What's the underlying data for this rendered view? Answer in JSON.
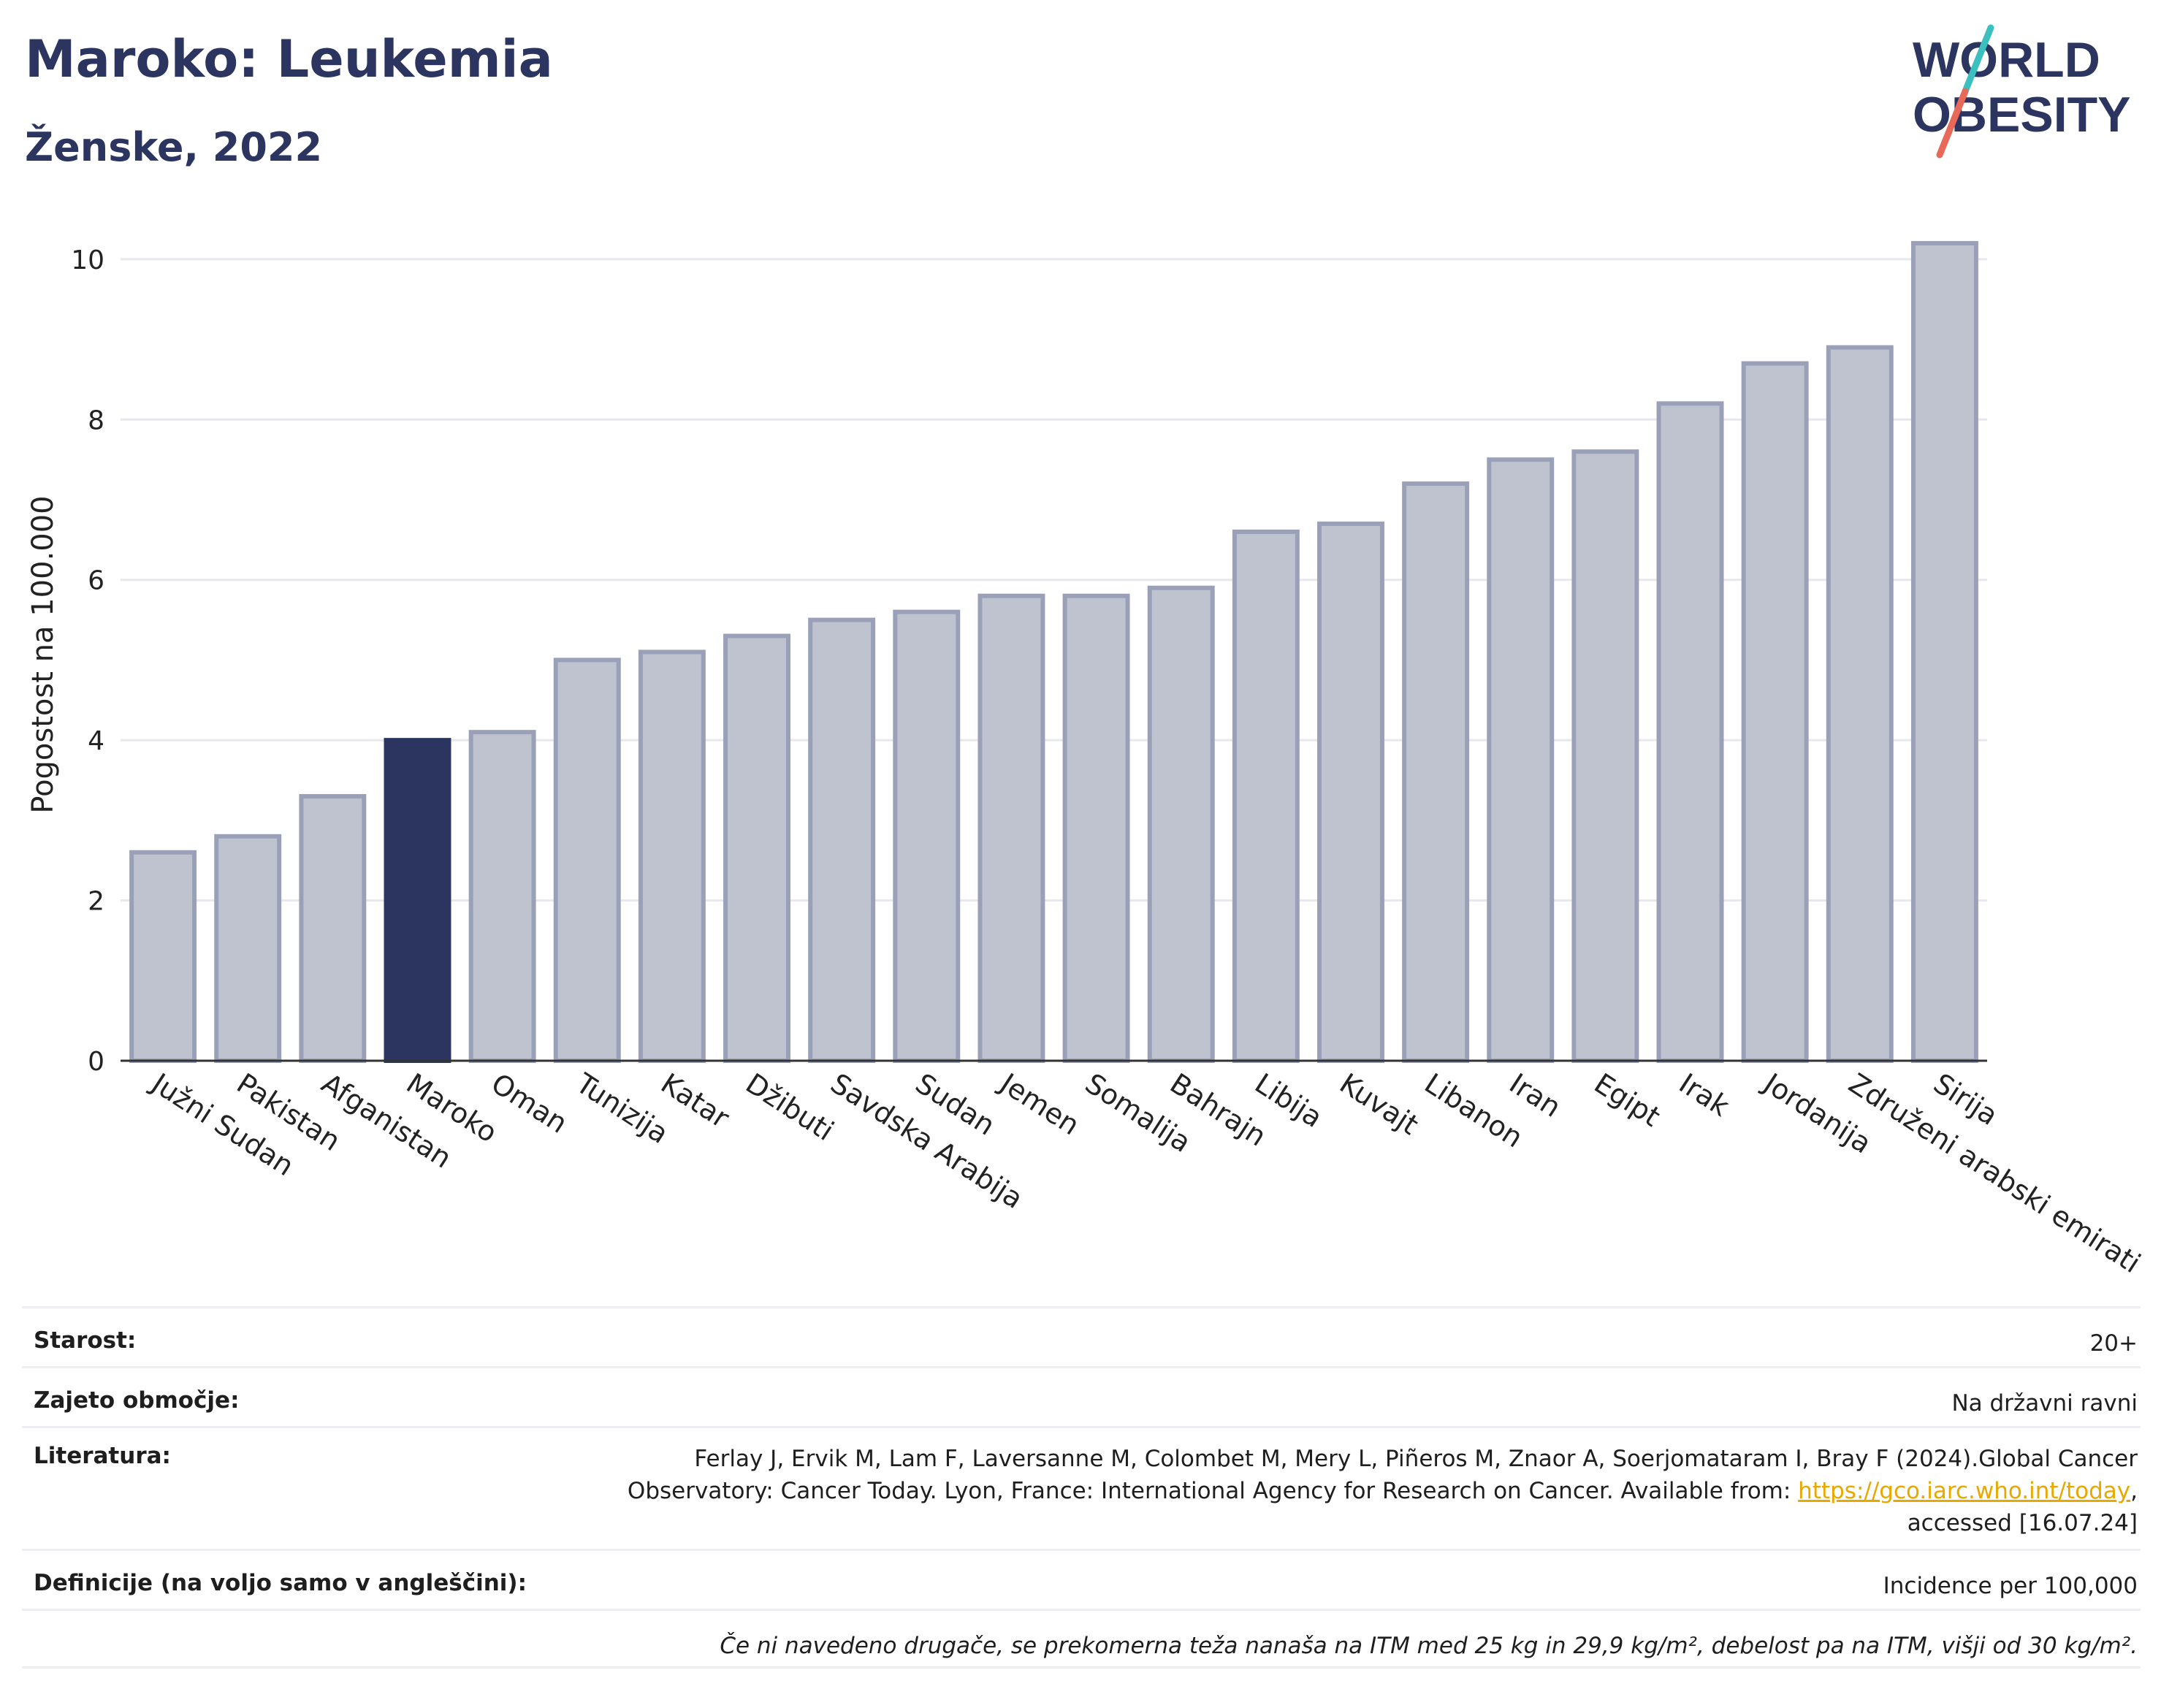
{
  "header": {
    "title": "Maroko: Leukemia",
    "subtitle": "Ženske, 2022"
  },
  "logo": {
    "line1": "WORLD",
    "line2": "OBESITY",
    "colors": {
      "text": "#2b3560",
      "slash_top": "#3bbfbf",
      "slash_bottom": "#e8685a"
    }
  },
  "chart_data": {
    "type": "bar",
    "categories": [
      "Južni Sudan",
      "Pakistan",
      "Afganistan",
      "Maroko",
      "Oman",
      "Tunizija",
      "Katar",
      "Džibuti",
      "Savdska Arabija",
      "Sudan",
      "Jemen",
      "Somalija",
      "Bahrajn",
      "Libija",
      "Kuvajt",
      "Libanon",
      "Iran",
      "Egipt",
      "Irak",
      "Jordanija",
      "Združeni arabski emirati",
      "Sirija"
    ],
    "values": [
      2.6,
      2.8,
      3.3,
      4.0,
      4.1,
      5.0,
      5.1,
      5.3,
      5.5,
      5.6,
      5.8,
      5.8,
      5.9,
      6.6,
      6.7,
      7.2,
      7.5,
      7.6,
      8.2,
      8.7,
      8.9,
      10.2
    ],
    "highlight": "Maroko",
    "ylabel": "Pogostost na 100.000",
    "xlabel": "",
    "ylim": [
      0,
      10.5
    ],
    "yticks": [
      0,
      2,
      4,
      6,
      8,
      10
    ],
    "grid": true,
    "colors": {
      "bar": "#bfc3d0",
      "bar_border": "#9aa0b8",
      "highlight": "#2b3560",
      "grid": "#e6e8ee",
      "axis": "#333333"
    }
  },
  "meta": {
    "age_label": "Starost:",
    "age_value": "20+",
    "area_label": "Zajeto območje:",
    "area_value": "Na državni ravni",
    "lit_label": "Literatura:",
    "lit_line1": "Ferlay J, Ervik M, Lam F, Laversanne M, Colombet M, Mery L, Piñeros M, Znaor A, Soerjomataram I, Bray F (2024).Global Cancer",
    "lit_line2_pre": "Observatory: Cancer Today. Lyon, France: International Agency for Research on Cancer. Available from: ",
    "lit_link": "https://gco.iarc.who.int/today",
    "lit_line2_post": ",",
    "lit_line3": "accessed [16.07.24]",
    "def_label": "Definicije (na voljo samo v angleščini):",
    "def_value": "Incidence per 100,000",
    "note": "Če ni navedeno drugače, se prekomerna teža nanaša na ITM med 25 kg in 29,9 kg/m², debelost pa na ITM, višji od 30 kg/m²."
  }
}
